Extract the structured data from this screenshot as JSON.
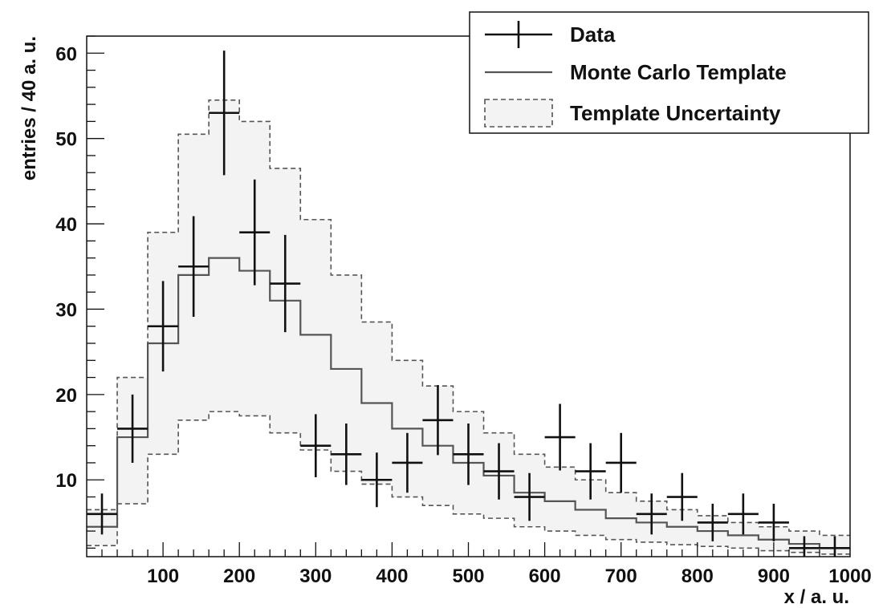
{
  "chart_data": {
    "type": "line",
    "xlabel": "x / a. u.",
    "ylabel": "entries / 40 a. u.",
    "xlim": [
      0,
      1000
    ],
    "ylim": [
      1,
      62
    ],
    "x_ticks": [
      100,
      200,
      300,
      400,
      500,
      600,
      700,
      800,
      900,
      1000
    ],
    "y_ticks": [
      10,
      20,
      30,
      40,
      50,
      60
    ],
    "bin_width": 40,
    "bin_edges": [
      0,
      40,
      80,
      120,
      160,
      200,
      240,
      280,
      320,
      360,
      400,
      440,
      480,
      520,
      560,
      600,
      640,
      680,
      720,
      760,
      800,
      840,
      880,
      920,
      960,
      1000
    ],
    "grid": false,
    "legend_position": "top-right",
    "colors": {
      "data": "#111111",
      "template": "#555555",
      "band_fill": "#f3f3f3",
      "band_edge": "#555555"
    },
    "series": [
      {
        "name": "Data",
        "kind": "points-with-errors",
        "x": [
          20,
          60,
          100,
          140,
          180,
          220,
          260,
          300,
          340,
          380,
          420,
          460,
          500,
          540,
          580,
          620,
          660,
          700,
          740,
          780,
          820,
          860,
          900,
          940,
          980
        ],
        "values": [
          6,
          16,
          28,
          35,
          53,
          39,
          33,
          14,
          13,
          10,
          12,
          17,
          13,
          11,
          8,
          15,
          11,
          12,
          6,
          8,
          5,
          6,
          5,
          2,
          2
        ],
        "errors": [
          2.4,
          4.0,
          5.3,
          5.9,
          7.3,
          6.2,
          5.7,
          3.7,
          3.6,
          3.2,
          3.5,
          4.1,
          3.6,
          3.3,
          2.8,
          3.9,
          3.3,
          3.5,
          2.4,
          2.8,
          2.2,
          2.4,
          2.2,
          1.4,
          1.4
        ]
      },
      {
        "name": "Monte Carlo Template",
        "kind": "step",
        "values": [
          4.5,
          15,
          26,
          34,
          36,
          34.5,
          31,
          27,
          23,
          19,
          16,
          14,
          12,
          10.5,
          8.5,
          7.5,
          6.5,
          5.5,
          5,
          4.5,
          4,
          3.5,
          3,
          2.5,
          2
        ]
      },
      {
        "name": "Template Uncertainty",
        "kind": "band",
        "lower": [
          2.3,
          7.2,
          13,
          17,
          18,
          17.5,
          15.5,
          13.5,
          11,
          9.5,
          8,
          7,
          6,
          5.5,
          4.5,
          4,
          3.5,
          3,
          2.7,
          2.4,
          2.2,
          2,
          1.7,
          1.5,
          1.3
        ],
        "upper": [
          6.5,
          22,
          39,
          50.5,
          54.5,
          52,
          46.5,
          40.5,
          34,
          28.5,
          24,
          21,
          18,
          15.5,
          13,
          11.5,
          10,
          8.5,
          7.5,
          6.5,
          5.8,
          5,
          4.5,
          4,
          3.5
        ]
      }
    ]
  }
}
